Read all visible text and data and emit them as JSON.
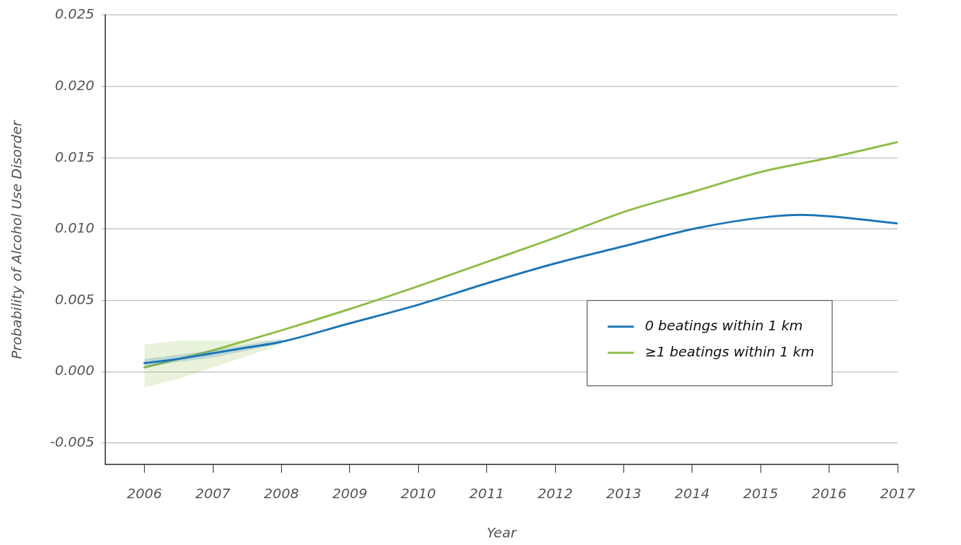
{
  "chart_data": {
    "type": "line",
    "xlabel": "Year",
    "ylabel": "Probability of Alcohol Use Disorder",
    "xlim": [
      2005.43,
      2017
    ],
    "xticks": [
      2006,
      2007,
      2008,
      2009,
      2010,
      2011,
      2012,
      2013,
      2014,
      2015,
      2016,
      2017
    ],
    "ylim": [
      -0.0065,
      0.025
    ],
    "yticks": [
      {
        "value": -0.005,
        "label": "-0.005"
      },
      {
        "value": 0,
        "label": "0.000"
      },
      {
        "value": 0.005,
        "label": "0.005"
      },
      {
        "value": 0.01,
        "label": "0.010"
      },
      {
        "value": 0.015,
        "label": "0.015"
      },
      {
        "value": 0.02,
        "label": "0.020"
      },
      {
        "value": 0.025,
        "label": "0.025"
      }
    ],
    "grid": "y",
    "legend": "right",
    "line_style": "solid",
    "series": [
      {
        "name": "0 beatings within 1 km",
        "color": "#1a75b8",
        "x": [
          2006,
          2006.5,
          2007,
          2007.5,
          2008,
          2009,
          2010,
          2011,
          2012,
          2013,
          2014,
          2015,
          2015.6,
          2016,
          2017
        ],
        "values": [
          0.0006,
          0.0009,
          0.0013,
          0.0017,
          0.0021,
          0.0034,
          0.0047,
          0.0062,
          0.0076,
          0.0088,
          0.01,
          0.0108,
          0.011,
          0.0109,
          0.0104
        ],
        "lower": [
          0.0003,
          0.0007,
          0.001,
          0.0015,
          0.002,
          null,
          null,
          null,
          null,
          null,
          null,
          null,
          null,
          null,
          null
        ],
        "upper": [
          0.0009,
          0.0012,
          0.0015,
          0.0019,
          0.0023,
          null,
          null,
          null,
          null,
          null,
          null,
          null,
          null,
          null,
          null
        ]
      },
      {
        "name": "≥1 beatings within 1 km",
        "color": "#8fbc45",
        "x": [
          2006,
          2006.5,
          2007,
          2007.5,
          2008,
          2009,
          2010,
          2011,
          2012,
          2013,
          2014,
          2015,
          2016,
          2017
        ],
        "values": [
          0.0003,
          0.0009,
          0.0015,
          0.0022,
          0.0029,
          0.0044,
          0.006,
          0.0077,
          0.0094,
          0.0112,
          0.0126,
          0.014,
          0.015,
          0.0161
        ],
        "lower": [
          -0.0011,
          -0.0005,
          0.0003,
          0.0011,
          0.0019,
          null,
          null,
          null,
          null,
          null,
          null,
          null,
          null,
          null
        ],
        "upper": [
          0.0019,
          0.0022,
          0.0022,
          0.0022,
          0.0022,
          null,
          null,
          null,
          null,
          null,
          null,
          null,
          null,
          null
        ]
      }
    ]
  }
}
